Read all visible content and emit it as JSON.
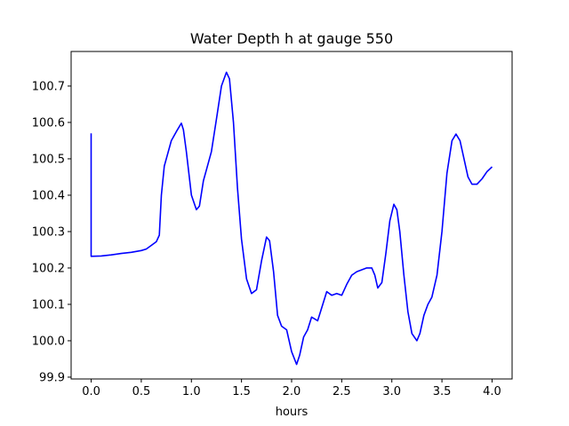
{
  "chart_data": {
    "type": "line",
    "title": "Water Depth h at gauge 550",
    "xlabel": "hours",
    "ylabel": "",
    "xlim": [
      -0.2,
      4.2
    ],
    "ylim": [
      99.895,
      100.795
    ],
    "grid": false,
    "line_color": "#0000ff",
    "xticks": [
      0.0,
      0.5,
      1.0,
      1.5,
      2.0,
      2.5,
      3.0,
      3.5,
      4.0
    ],
    "xtick_labels": [
      "0.0",
      "0.5",
      "1.0",
      "1.5",
      "2.0",
      "2.5",
      "3.0",
      "3.5",
      "4.0"
    ],
    "yticks": [
      99.9,
      100.0,
      100.1,
      100.2,
      100.3,
      100.4,
      100.5,
      100.6,
      100.7
    ],
    "ytick_labels": [
      "99.9",
      "100.0",
      "100.1",
      "100.2",
      "100.3",
      "100.4",
      "100.5",
      "100.6",
      "100.7"
    ],
    "series": [
      {
        "x": [
          0.0,
          0.0,
          0.1,
          0.2,
          0.3,
          0.4,
          0.5,
          0.55,
          0.6,
          0.65,
          0.68,
          0.7,
          0.73,
          0.76,
          0.8,
          0.85,
          0.9,
          0.92,
          0.95,
          1.0,
          1.05,
          1.08,
          1.12,
          1.15,
          1.2,
          1.25,
          1.3,
          1.35,
          1.38,
          1.42,
          1.46,
          1.5,
          1.55,
          1.6,
          1.65,
          1.7,
          1.75,
          1.78,
          1.82,
          1.86,
          1.9,
          1.95,
          2.0,
          2.05,
          2.08,
          2.12,
          2.16,
          2.2,
          2.23,
          2.26,
          2.3,
          2.35,
          2.4,
          2.45,
          2.5,
          2.55,
          2.6,
          2.65,
          2.7,
          2.75,
          2.8,
          2.83,
          2.86,
          2.9,
          2.94,
          2.98,
          3.02,
          3.05,
          3.08,
          3.12,
          3.16,
          3.2,
          3.25,
          3.28,
          3.32,
          3.36,
          3.4,
          3.45,
          3.5,
          3.55,
          3.6,
          3.64,
          3.68,
          3.72,
          3.76,
          3.8,
          3.85,
          3.9,
          3.95,
          4.0
        ],
        "y": [
          100.57,
          100.232,
          100.233,
          100.236,
          100.24,
          100.243,
          100.248,
          100.252,
          100.262,
          100.272,
          100.29,
          100.4,
          100.48,
          100.51,
          100.55,
          100.575,
          100.598,
          100.58,
          100.52,
          100.4,
          100.36,
          100.37,
          100.44,
          100.47,
          100.52,
          100.61,
          100.7,
          100.738,
          100.72,
          100.6,
          100.42,
          100.28,
          100.17,
          100.13,
          100.14,
          100.22,
          100.285,
          100.275,
          100.19,
          100.07,
          100.04,
          100.03,
          99.97,
          99.935,
          99.96,
          100.01,
          100.03,
          100.065,
          100.06,
          100.055,
          100.09,
          100.135,
          100.125,
          100.13,
          100.125,
          100.155,
          100.18,
          100.19,
          100.195,
          100.2,
          100.2,
          100.18,
          100.145,
          100.16,
          100.24,
          100.33,
          100.375,
          100.36,
          100.3,
          100.18,
          100.08,
          100.02,
          100.0,
          100.02,
          100.07,
          100.1,
          100.12,
          100.18,
          100.3,
          100.46,
          100.55,
          100.568,
          100.55,
          100.5,
          100.45,
          100.43,
          100.43,
          100.445,
          100.465,
          100.478
        ]
      }
    ]
  }
}
